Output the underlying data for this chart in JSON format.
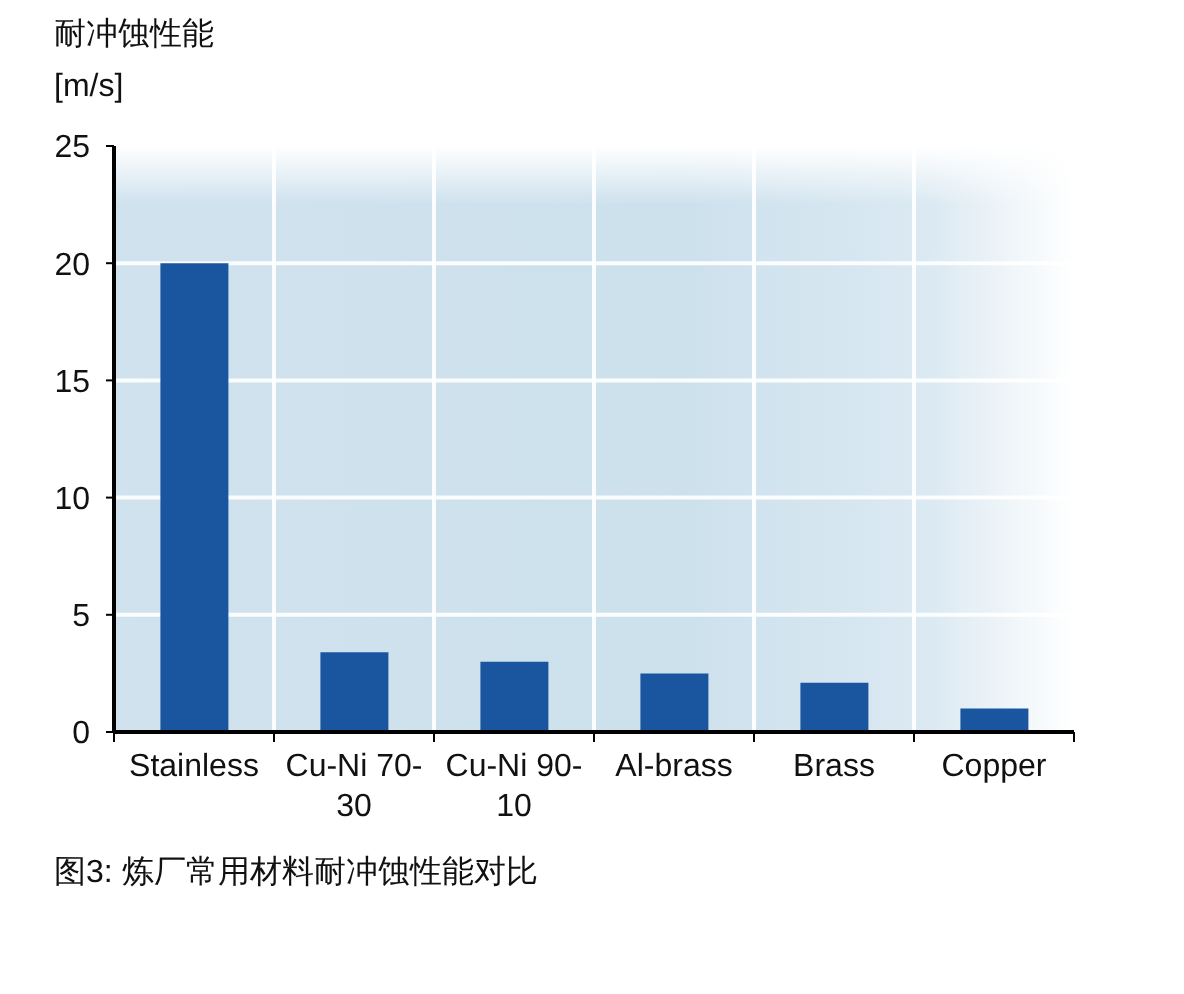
{
  "chart_data": {
    "type": "bar",
    "ylabel": "耐冲蚀性能 [m/s]",
    "categories": [
      "Stainless",
      "Cu-Ni 70-30",
      "Cu-Ni 90-10",
      "Al-brass",
      "Brass",
      "Copper"
    ],
    "values": [
      20,
      3.4,
      3.0,
      2.5,
      2.1,
      1.0
    ],
    "color": "#1a56a0",
    "ylim": [
      0,
      25
    ],
    "yticks": [
      0,
      5,
      10,
      15,
      20,
      25
    ],
    "grid": true,
    "annotations": [
      "图3: 炼厂常用材料耐冲蚀性能对比"
    ]
  }
}
